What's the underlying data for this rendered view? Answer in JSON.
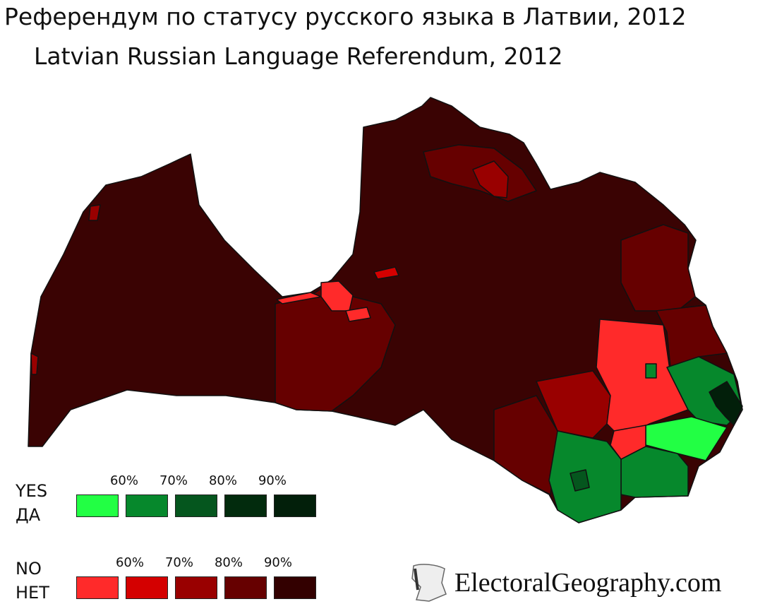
{
  "title_ru": "Референдум по статусу русского языка в Латвии, 2012",
  "title_en": "Latvian Russian Language Referendum, 2012",
  "legend": {
    "yes": {
      "label_en": "YES",
      "label_ru": "ДА",
      "ticks": [
        "60%",
        "70%",
        "80%",
        "90%"
      ],
      "colors": [
        "#22ff44",
        "#06882c",
        "#05561e",
        "#022b0d",
        "#021f0a"
      ]
    },
    "no": {
      "label_en": "NO",
      "label_ru": "НЕТ",
      "ticks": [
        "60%",
        "70%",
        "80%",
        "90%"
      ],
      "colors": [
        "#ff2a2a",
        "#d40000",
        "#990000",
        "#660000",
        "#330000"
      ]
    }
  },
  "map": {
    "base_color": "#3a0303",
    "border_color": "#111111"
  },
  "credit": "ElectoralGeography.com"
}
